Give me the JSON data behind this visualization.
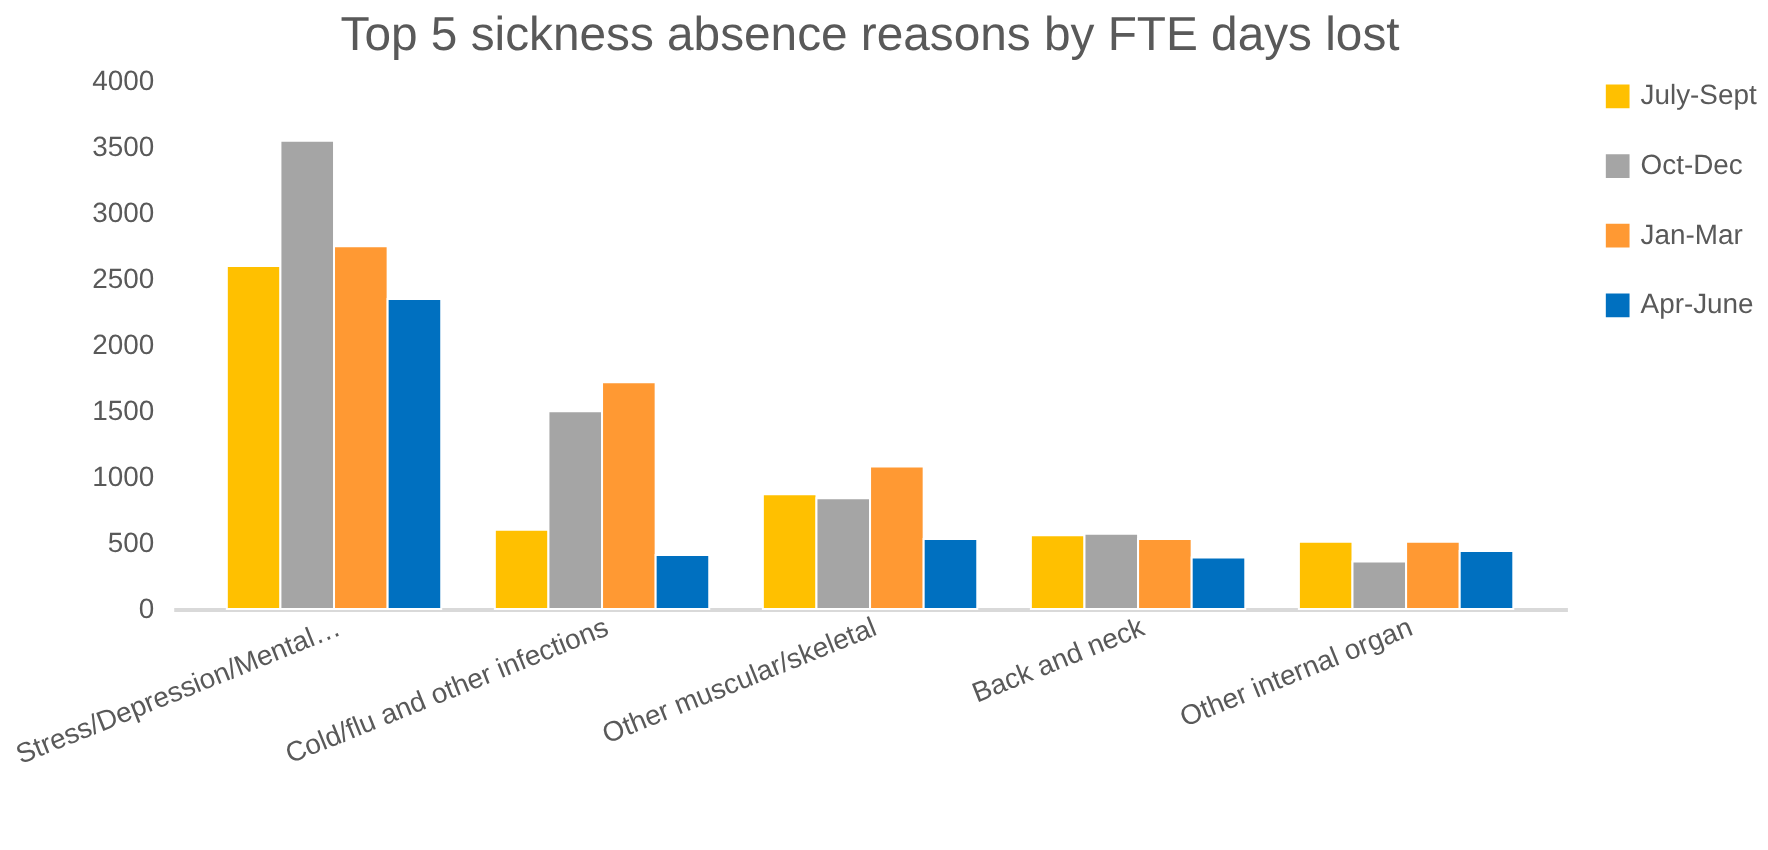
{
  "chart_data": {
    "type": "bar",
    "title": "Top 5 sickness absence reasons by FTE days lost",
    "categories": [
      "Stress/Depression/Mental…",
      "Cold/flu and other infections",
      "Other muscular/skeletal",
      "Back and neck",
      "Other internal organ"
    ],
    "series": [
      {
        "name": "July-Sept",
        "color": "#ffc000",
        "values": [
          2600,
          600,
          870,
          560,
          510
        ]
      },
      {
        "name": "Oct-Dec",
        "color": "#a5a5a5",
        "values": [
          3550,
          1500,
          840,
          570,
          360
        ]
      },
      {
        "name": "Jan-Mar",
        "color": "#ff9933",
        "values": [
          2750,
          1720,
          1080,
          530,
          510
        ]
      },
      {
        "name": "Apr-June",
        "color": "#0070c0",
        "values": [
          2350,
          410,
          530,
          390,
          440
        ]
      }
    ],
    "ylim": [
      0,
      4000
    ],
    "yticks": [
      0,
      500,
      1000,
      1500,
      2000,
      2500,
      3000,
      3500,
      4000
    ],
    "grid": false,
    "legend": "top right"
  }
}
